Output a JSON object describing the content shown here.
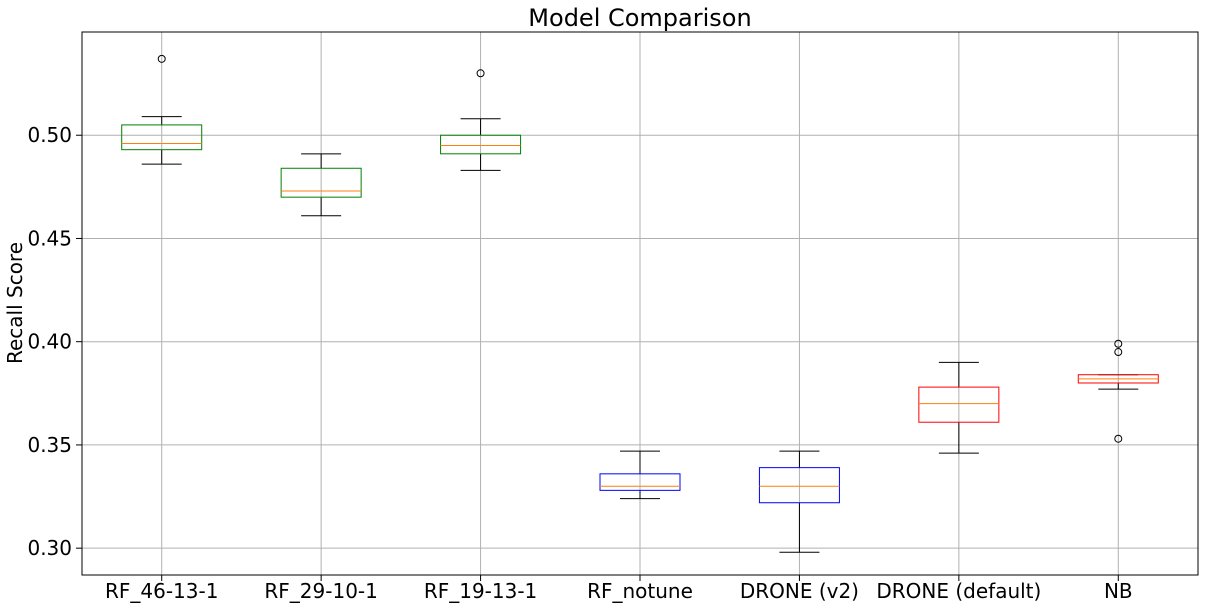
{
  "chart_data": {
    "type": "boxplot",
    "title": "Model Comparison",
    "xlabel": "",
    "ylabel": "Recall Score",
    "ylim": [
      0.287,
      0.55
    ],
    "yticks": [
      "0.30",
      "0.35",
      "0.40",
      "0.45",
      "0.50"
    ],
    "ytick_values": [
      0.3,
      0.35,
      0.4,
      0.45,
      0.5
    ],
    "grid": true,
    "colors": {
      "green": "#008000",
      "blue": "#0000ff",
      "red": "#ff0000",
      "median": "#ff7f0e",
      "grid": "#b0b0b0",
      "whisker": "#000000"
    },
    "categories": [
      "RF_46-13-1",
      "RF_29-10-1",
      "RF_19-13-1",
      "RF_notune",
      "DRONE (v2)",
      "DRONE (default)",
      "NB"
    ],
    "boxes": [
      {
        "label": "RF_46-13-1",
        "color": "green",
        "whislo": 0.486,
        "q1": 0.493,
        "med": 0.496,
        "q3": 0.505,
        "whishi": 0.509,
        "fliers": [
          0.537
        ]
      },
      {
        "label": "RF_29-10-1",
        "color": "green",
        "whislo": 0.461,
        "q1": 0.47,
        "med": 0.473,
        "q3": 0.484,
        "whishi": 0.491,
        "fliers": []
      },
      {
        "label": "RF_19-13-1",
        "color": "green",
        "whislo": 0.483,
        "q1": 0.491,
        "med": 0.495,
        "q3": 0.5,
        "whishi": 0.508,
        "fliers": [
          0.53
        ]
      },
      {
        "label": "RF_notune",
        "color": "blue",
        "whislo": 0.324,
        "q1": 0.328,
        "med": 0.33,
        "q3": 0.336,
        "whishi": 0.347,
        "fliers": []
      },
      {
        "label": "DRONE (v2)",
        "color": "blue",
        "whislo": 0.298,
        "q1": 0.322,
        "med": 0.33,
        "q3": 0.339,
        "whishi": 0.347,
        "fliers": []
      },
      {
        "label": "DRONE (default)",
        "color": "red",
        "whislo": 0.346,
        "q1": 0.361,
        "med": 0.37,
        "q3": 0.378,
        "whishi": 0.39,
        "fliers": []
      },
      {
        "label": "NB",
        "color": "red",
        "whislo": 0.377,
        "q1": 0.38,
        "med": 0.382,
        "q3": 0.384,
        "whishi": 0.384,
        "fliers": [
          0.399,
          0.395,
          0.353
        ]
      }
    ]
  }
}
